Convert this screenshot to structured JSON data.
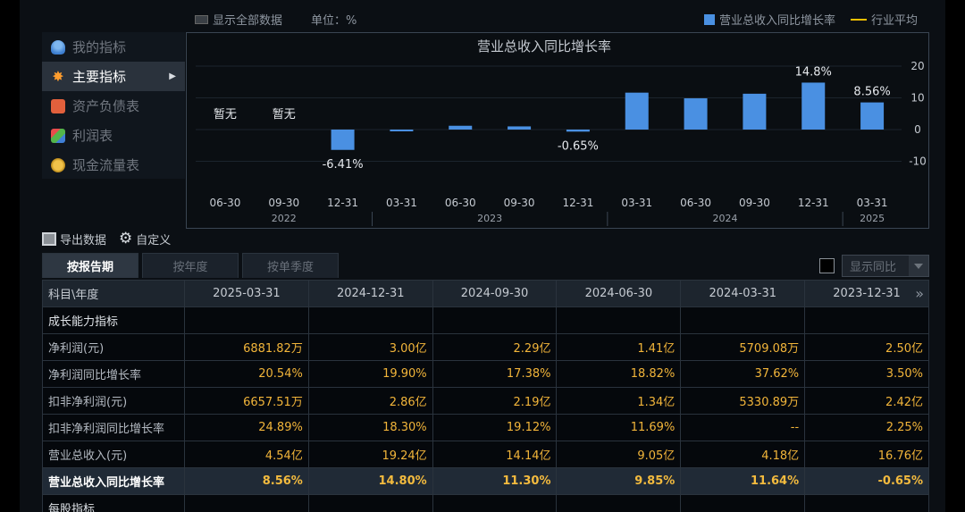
{
  "topbar": {
    "show_all": "显示全部数据",
    "unit": "单位：%",
    "legend_growth": "营业总收入同比增长率",
    "legend_avg": "行业平均"
  },
  "sidebar": {
    "items": [
      {
        "label": "我的指标",
        "icon": "user-icon"
      },
      {
        "label": "主要指标",
        "icon": "star-icon"
      },
      {
        "label": "资产负债表",
        "icon": "document-icon"
      },
      {
        "label": "利润表",
        "icon": "cube-icon"
      },
      {
        "label": "现金流量表",
        "icon": "coins-icon"
      }
    ],
    "active": "主要指标"
  },
  "chart_data": {
    "type": "bar",
    "title": "营业总收入同比增长率",
    "categories": [
      "06-30",
      "09-30",
      "12-31",
      "03-31",
      "06-30",
      "09-30",
      "12-31",
      "03-31",
      "06-30",
      "09-30",
      "12-31",
      "03-31"
    ],
    "year_groups": [
      {
        "year": "2022",
        "span": 3
      },
      {
        "year": "2023",
        "span": 4
      },
      {
        "year": "2024",
        "span": 4
      },
      {
        "year": "2025",
        "span": 1
      }
    ],
    "values": [
      null,
      null,
      -6.41,
      -0.3,
      1.2,
      1.0,
      -0.65,
      11.64,
      9.85,
      11.3,
      14.8,
      8.56
    ],
    "value_labels": [
      "暂无",
      "暂无",
      "-6.41%",
      "",
      "",
      "",
      "-0.65%",
      "",
      "",
      "",
      "14.8%",
      "8.56%"
    ],
    "y_ticks": [
      "20",
      "10",
      "0",
      "-10"
    ],
    "ylim": [
      -20,
      20
    ],
    "bar_color": "#4a90e2",
    "avg_line_color": "#f5c000"
  },
  "tools": {
    "export": "导出数据",
    "custom": "自定义"
  },
  "tabs": [
    "按报告期",
    "按年度",
    "按单季度"
  ],
  "active_tab": "按报告期",
  "show_yoy": "显示同比",
  "table": {
    "header_first": "科目\\年度",
    "columns": [
      "2025-03-31",
      "2024-12-31",
      "2024-09-30",
      "2024-06-30",
      "2024-03-31",
      "2023-12-31"
    ],
    "rows": [
      {
        "label": "成长能力指标",
        "values": [
          "",
          "",
          "",
          "",
          "",
          ""
        ]
      },
      {
        "label": "净利润(元)",
        "values": [
          "6881.82万",
          "3.00亿",
          "2.29亿",
          "1.41亿",
          "5709.08万",
          "2.50亿"
        ]
      },
      {
        "label": "净利润同比增长率",
        "values": [
          "20.54%",
          "19.90%",
          "17.38%",
          "18.82%",
          "37.62%",
          "3.50%"
        ]
      },
      {
        "label": "扣非净利润(元)",
        "values": [
          "6657.51万",
          "2.86亿",
          "2.19亿",
          "1.34亿",
          "5330.89万",
          "2.42亿"
        ]
      },
      {
        "label": "扣非净利润同比增长率",
        "values": [
          "24.89%",
          "18.30%",
          "19.12%",
          "11.69%",
          "--",
          "2.25%"
        ]
      },
      {
        "label": "营业总收入(元)",
        "values": [
          "4.54亿",
          "19.24亿",
          "14.14亿",
          "9.05亿",
          "4.18亿",
          "16.76亿"
        ]
      },
      {
        "label": "营业总收入同比增长率",
        "values": [
          "8.56%",
          "14.80%",
          "11.30%",
          "9.85%",
          "11.64%",
          "-0.65%"
        ]
      },
      {
        "label": "每股指标",
        "values": [
          "",
          "",
          "",
          "",
          "",
          ""
        ]
      }
    ]
  }
}
